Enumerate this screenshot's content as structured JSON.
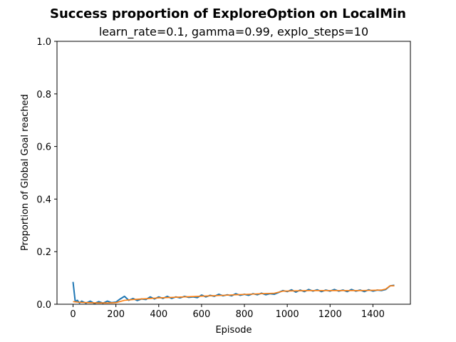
{
  "chart_data": {
    "type": "line",
    "suptitle": "Success proportion of ExploreOption on LocalMin",
    "title": "learn_rate=0.1, gamma=0.99, explo_steps=10",
    "xlabel": "Episode",
    "ylabel": "Proportion of Global Goal reached",
    "xlim": [
      -75,
      1575
    ],
    "ylim": [
      0,
      1.0
    ],
    "x_ticks": [
      0,
      200,
      400,
      600,
      800,
      1000,
      1200,
      1400
    ],
    "y_ticks": [
      0.0,
      0.2,
      0.4,
      0.6,
      0.8,
      1.0
    ],
    "x_tick_labels": [
      "0",
      "200",
      "400",
      "600",
      "800",
      "1000",
      "1200",
      "1400"
    ],
    "y_tick_labels": [
      "0.0",
      "0.2",
      "0.4",
      "0.6",
      "0.8",
      "1.0"
    ],
    "grid": false,
    "series": [
      {
        "color": "#1f77b4",
        "x": [
          0,
          10,
          20,
          30,
          40,
          60,
          80,
          100,
          120,
          140,
          160,
          180,
          200,
          220,
          240,
          260,
          280,
          300,
          320,
          340,
          360,
          380,
          400,
          420,
          440,
          460,
          480,
          500,
          520,
          540,
          560,
          580,
          600,
          620,
          640,
          660,
          680,
          700,
          720,
          740,
          760,
          780,
          800,
          820,
          840,
          860,
          880,
          900,
          920,
          940,
          960,
          980,
          1000,
          1020,
          1040,
          1060,
          1080,
          1100,
          1120,
          1140,
          1160,
          1180,
          1200,
          1220,
          1240,
          1260,
          1280,
          1300,
          1320,
          1340,
          1360,
          1380,
          1400,
          1420,
          1440,
          1460,
          1480,
          1500
        ],
        "y": [
          0.085,
          0.01,
          0.015,
          0.005,
          0.012,
          0.004,
          0.012,
          0.003,
          0.01,
          0.004,
          0.012,
          0.006,
          0.008,
          0.02,
          0.03,
          0.015,
          0.022,
          0.014,
          0.02,
          0.018,
          0.028,
          0.02,
          0.028,
          0.022,
          0.03,
          0.022,
          0.028,
          0.024,
          0.03,
          0.026,
          0.028,
          0.025,
          0.035,
          0.028,
          0.034,
          0.03,
          0.038,
          0.032,
          0.036,
          0.032,
          0.04,
          0.034,
          0.038,
          0.034,
          0.04,
          0.036,
          0.042,
          0.036,
          0.04,
          0.038,
          0.045,
          0.052,
          0.048,
          0.055,
          0.046,
          0.054,
          0.048,
          0.056,
          0.05,
          0.055,
          0.048,
          0.054,
          0.05,
          0.056,
          0.05,
          0.054,
          0.048,
          0.056,
          0.05,
          0.054,
          0.048,
          0.055,
          0.05,
          0.054,
          0.052,
          0.056,
          0.07,
          0.072
        ]
      },
      {
        "color": "#ff7f0e",
        "x": [
          0,
          20,
          40,
          80,
          120,
          160,
          200,
          240,
          280,
          320,
          360,
          400,
          460,
          520,
          580,
          640,
          700,
          760,
          820,
          880,
          940,
          980,
          1040,
          1100,
          1160,
          1220,
          1280,
          1340,
          1400,
          1440,
          1460,
          1480,
          1500
        ],
        "y": [
          0.01,
          0.008,
          0.007,
          0.006,
          0.005,
          0.005,
          0.006,
          0.015,
          0.018,
          0.02,
          0.022,
          0.024,
          0.026,
          0.028,
          0.03,
          0.032,
          0.034,
          0.036,
          0.038,
          0.04,
          0.042,
          0.05,
          0.051,
          0.052,
          0.052,
          0.052,
          0.052,
          0.052,
          0.053,
          0.054,
          0.058,
          0.07,
          0.07
        ]
      }
    ]
  }
}
